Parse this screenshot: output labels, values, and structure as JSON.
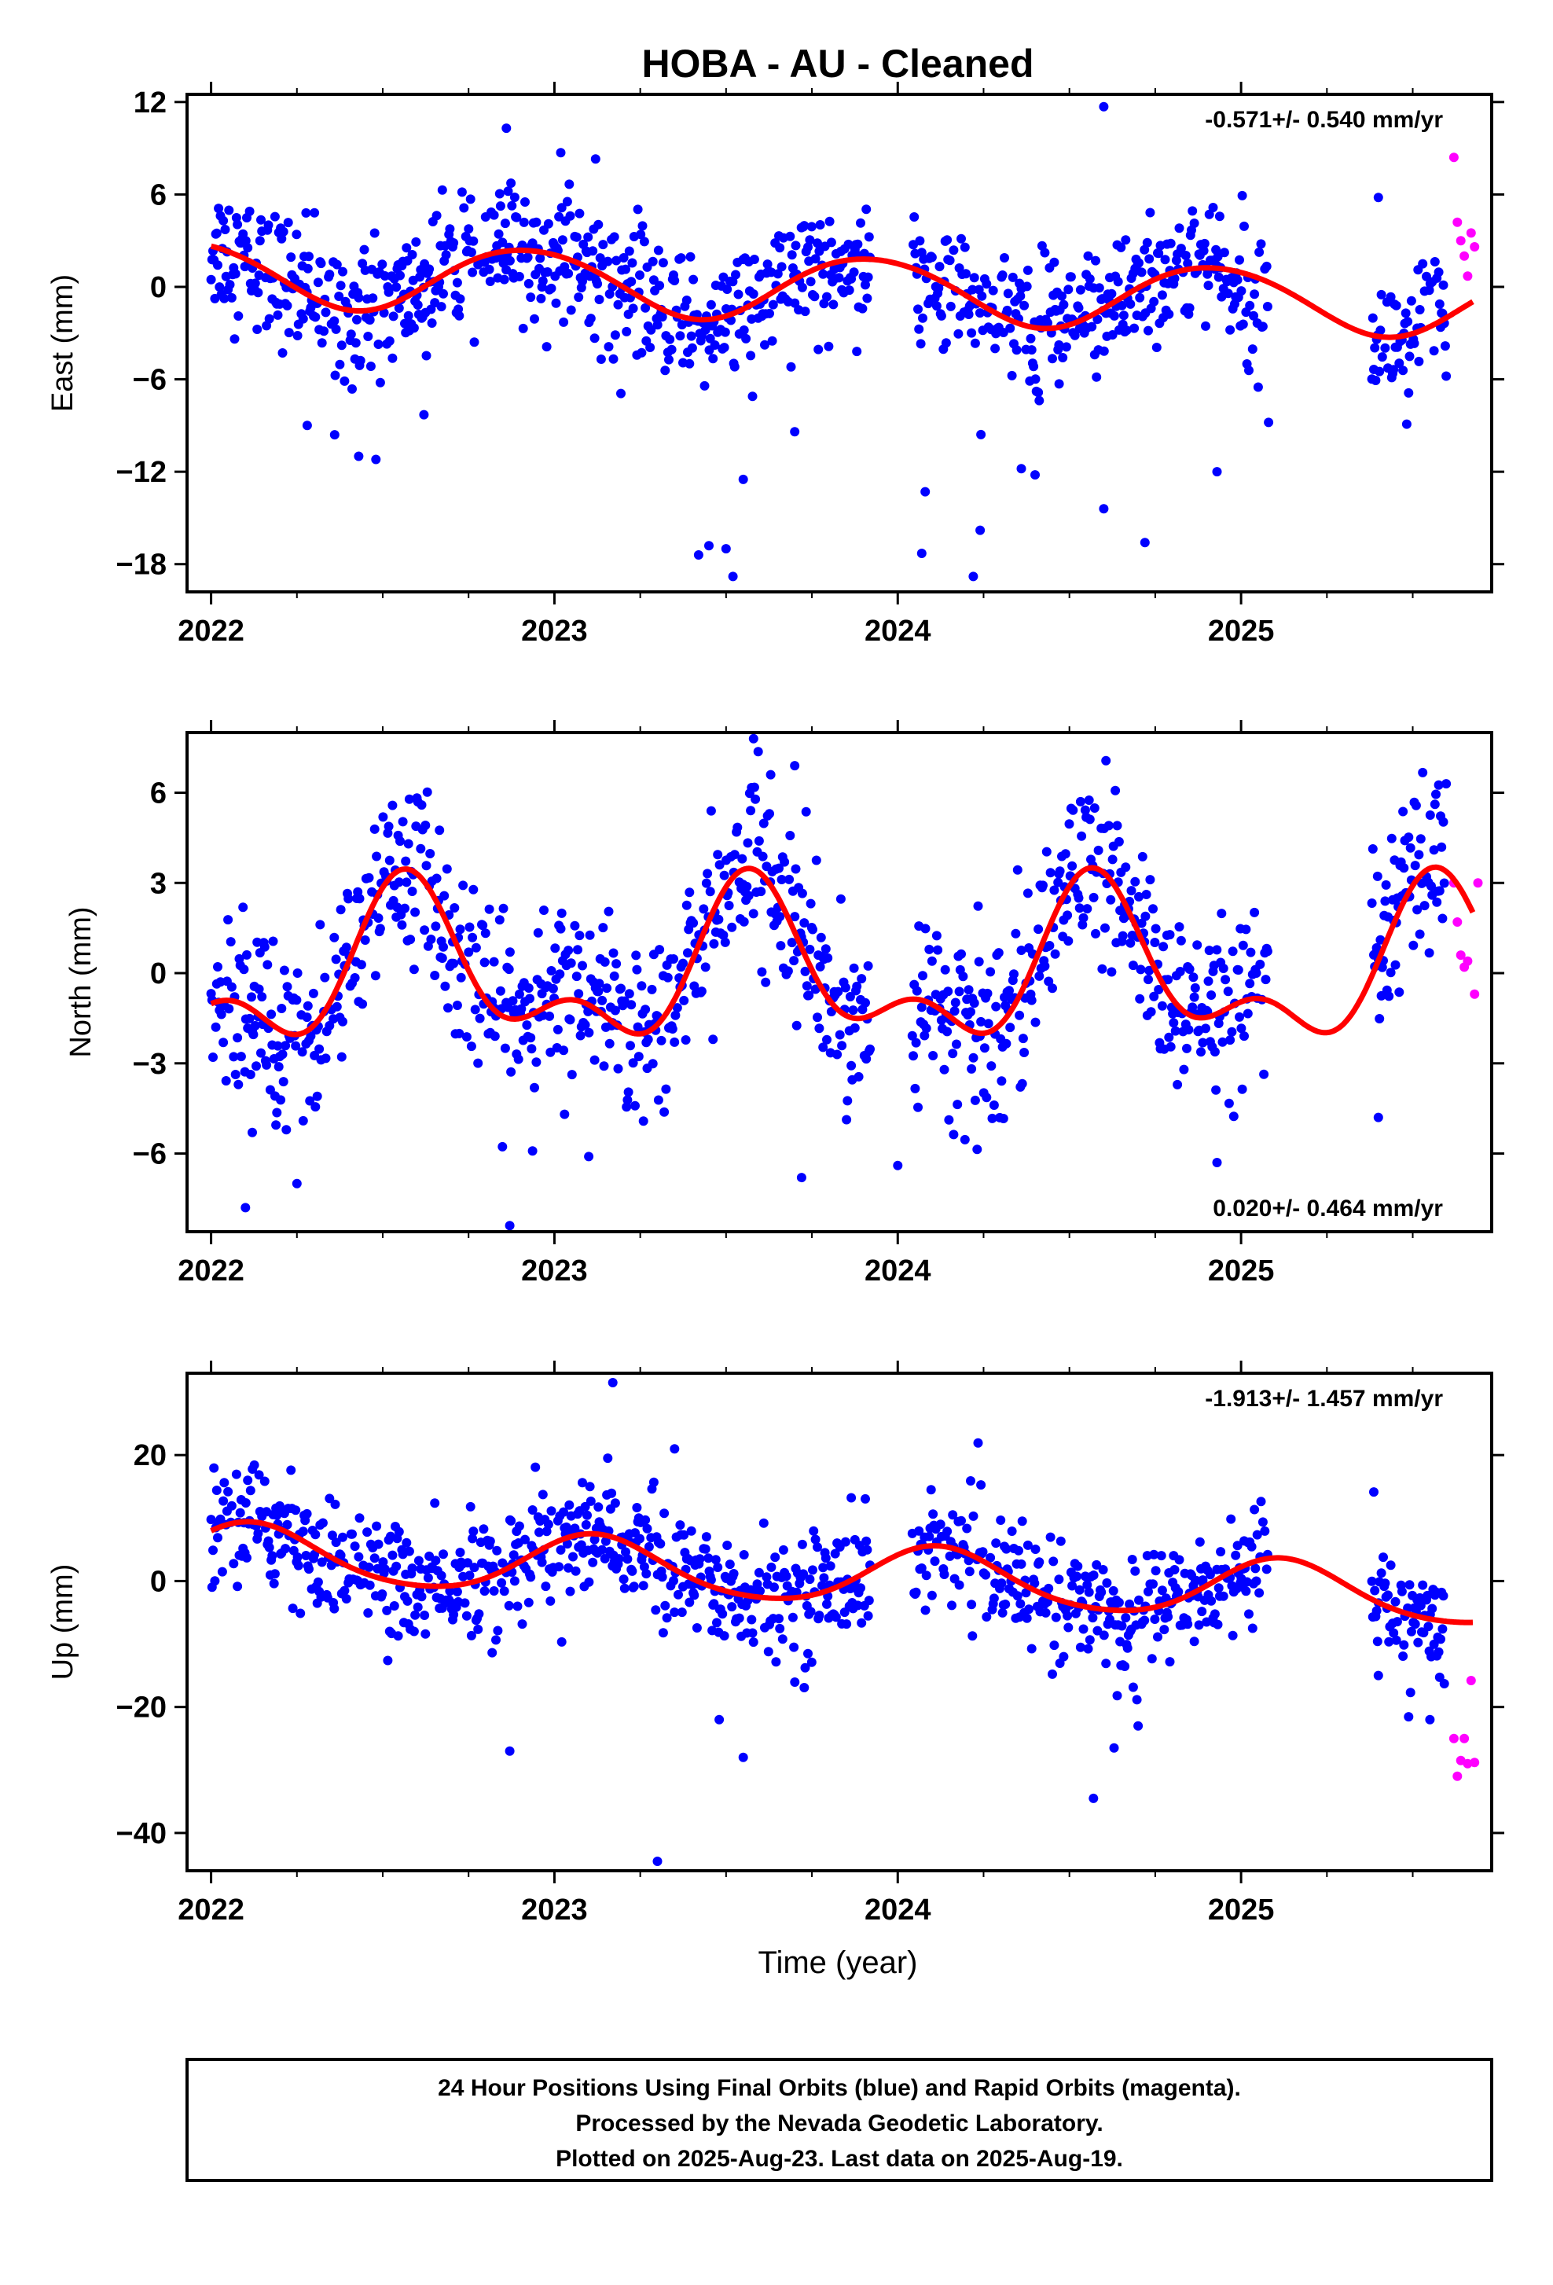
{
  "title": "HOBA  - AU - Cleaned",
  "x_axis_label": "Time (year)",
  "footer": [
    "24 Hour Positions Using Final Orbits (blue) and Rapid Orbits (magenta).",
    "Processed by the Nevada Geodetic Laboratory.",
    "Plotted on 2025-Aug-23. Last data on 2025-Aug-19."
  ],
  "colors": {
    "final": "#0000ff",
    "rapid": "#ff00ff",
    "model": "#ff0000",
    "frame": "#000000"
  },
  "chart_data": [
    {
      "type": "scatter",
      "name": "east",
      "ylabel": "East (mm)",
      "rate_text": "-0.571+/- 0.540 mm/yr",
      "rate_position": "top-right",
      "xlim": [
        2021.93,
        2025.73
      ],
      "ylim": [
        -19.8,
        12.5
      ],
      "xticks": [
        2022,
        2023,
        2024,
        2025
      ],
      "yticks": [
        12,
        6,
        0,
        -6,
        -12,
        -18
      ],
      "model": {
        "offset": -0.1,
        "trend": -0.571,
        "annual_amp": 2.1,
        "annual_peak": 0.92,
        "semiannual_amp": 0.15,
        "semiannual_peak": 0.2
      },
      "noise_sd": 2.1,
      "outliers": [
        [
          2022.28,
          -9.0
        ],
        [
          2022.36,
          -9.6
        ],
        [
          2022.43,
          -11.0
        ],
        [
          2022.48,
          -11.2
        ],
        [
          2022.62,
          -8.3
        ],
        [
          2022.86,
          10.3
        ],
        [
          2023.12,
          8.3
        ],
        [
          2023.42,
          -17.4
        ],
        [
          2023.45,
          -16.8
        ],
        [
          2023.5,
          -17.0
        ],
        [
          2023.52,
          -18.8
        ],
        [
          2023.55,
          -12.5
        ],
        [
          2023.7,
          -9.4
        ],
        [
          2024.07,
          -17.3
        ],
        [
          2024.08,
          -13.3
        ],
        [
          2024.22,
          -18.8
        ],
        [
          2024.24,
          -15.8
        ],
        [
          2024.36,
          -11.8
        ],
        [
          2024.4,
          -12.2
        ],
        [
          2024.47,
          -6.3
        ],
        [
          2024.6,
          11.7
        ],
        [
          2024.6,
          -14.4
        ],
        [
          2024.72,
          -16.6
        ],
        [
          2024.93,
          -12.0
        ],
        [
          2025.08,
          -8.8
        ],
        [
          2025.4,
          5.8
        ]
      ],
      "rapid_points": [
        [
          2025.62,
          8.4
        ],
        [
          2025.63,
          4.2
        ],
        [
          2025.64,
          3.0
        ],
        [
          2025.65,
          2.0
        ],
        [
          2025.66,
          0.7
        ],
        [
          2025.67,
          3.5
        ],
        [
          2025.68,
          2.6
        ]
      ]
    },
    {
      "type": "scatter",
      "name": "north",
      "ylabel": "North (mm)",
      "rate_text": "0.020+/- 0.464 mm/yr",
      "rate_position": "bottom-right",
      "xlim": [
        2021.93,
        2025.73
      ],
      "ylim": [
        -8.6,
        8.0
      ],
      "xticks": [
        2022,
        2023,
        2024,
        2025
      ],
      "yticks": [
        6,
        3,
        0,
        -3,
        -6
      ],
      "model": {
        "offset": 0.0,
        "trend": 0.02,
        "annual_amp": 2.2,
        "annual_peak": 0.58,
        "semiannual_amp": 1.3,
        "semiannual_peak": 0.56
      },
      "noise_sd": 1.45,
      "outliers": [
        [
          2022.1,
          -7.8
        ],
        [
          2022.12,
          -5.3
        ],
        [
          2022.25,
          -7.0
        ],
        [
          2022.87,
          -8.4
        ],
        [
          2023.1,
          -6.1
        ],
        [
          2023.58,
          7.8
        ],
        [
          2023.63,
          6.6
        ],
        [
          2023.7,
          6.9
        ],
        [
          2023.72,
          -6.8
        ],
        [
          2024.0,
          -6.4
        ],
        [
          2024.93,
          -6.3
        ],
        [
          2025.4,
          -4.8
        ]
      ],
      "rapid_points": [
        [
          2025.62,
          3.0
        ],
        [
          2025.63,
          1.7
        ],
        [
          2025.64,
          0.6
        ],
        [
          2025.65,
          0.2
        ],
        [
          2025.66,
          0.4
        ],
        [
          2025.68,
          -0.7
        ],
        [
          2025.69,
          3.0
        ]
      ]
    },
    {
      "type": "scatter",
      "name": "up",
      "ylabel": "Up (mm)",
      "rate_text": "-1.913+/- 1.457 mm/yr",
      "rate_position": "top-right",
      "xlim": [
        2021.93,
        2025.73
      ],
      "ylim": [
        -46,
        33
      ],
      "xticks": [
        2022,
        2023,
        2024,
        2025
      ],
      "yticks": [
        20,
        0,
        -20,
        -40
      ],
      "model": {
        "offset": 1.0,
        "trend": -1.913,
        "annual_amp": 4.6,
        "annual_peak": 0.12,
        "semiannual_amp": 0.6,
        "semiannual_peak": 0.1
      },
      "noise_sd": 4.8,
      "outliers": [
        [
          2022.87,
          -27.0
        ],
        [
          2023.17,
          31.5
        ],
        [
          2023.3,
          -44.5
        ],
        [
          2023.35,
          21.0
        ],
        [
          2023.48,
          -22.0
        ],
        [
          2023.55,
          -28.0
        ],
        [
          2024.57,
          -34.5
        ],
        [
          2024.63,
          -26.5
        ],
        [
          2024.7,
          -23.0
        ],
        [
          2025.4,
          -15.0
        ],
        [
          2025.55,
          -22.0
        ]
      ],
      "rapid_points": [
        [
          2025.62,
          -25.0
        ],
        [
          2025.63,
          -31.0
        ],
        [
          2025.64,
          -28.5
        ],
        [
          2025.65,
          -25.0
        ],
        [
          2025.66,
          -29.0
        ],
        [
          2025.67,
          -15.8
        ],
        [
          2025.68,
          -28.8
        ]
      ]
    }
  ],
  "data_gaps": [
    [
      2023.92,
      2024.04
    ],
    [
      2025.08,
      2025.38
    ]
  ]
}
